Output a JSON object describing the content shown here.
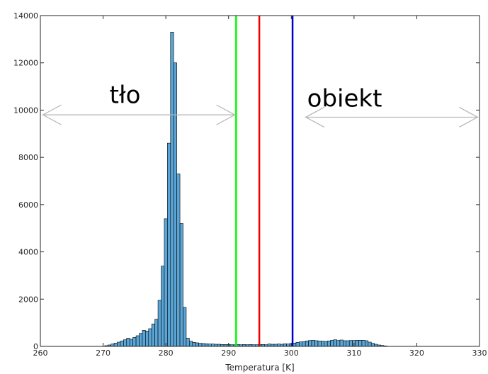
{
  "chart_data": {
    "type": "bar",
    "xlabel": "Temperatura [K]",
    "ylabel": "",
    "title": "",
    "xlim": [
      260,
      330
    ],
    "ylim": [
      0,
      14000
    ],
    "grid": false,
    "xticks": [
      "260",
      "270",
      "280",
      "290",
      "300",
      "310",
      "320",
      "330"
    ],
    "yticks": [
      "0",
      "2000",
      "4000",
      "6000",
      "8000",
      "10000",
      "12000",
      "14000"
    ],
    "bar_color": "#5aa5d6",
    "bar_edge_color": "#000000",
    "bin_width": 0.5,
    "bins": [
      [
        270.5,
        30
      ],
      [
        271.0,
        60
      ],
      [
        271.5,
        100
      ],
      [
        272.0,
        140
      ],
      [
        272.5,
        180
      ],
      [
        273.0,
        230
      ],
      [
        273.5,
        280
      ],
      [
        274.0,
        350
      ],
      [
        274.5,
        300
      ],
      [
        275.0,
        380
      ],
      [
        275.5,
        450
      ],
      [
        276.0,
        550
      ],
      [
        276.5,
        680
      ],
      [
        277.0,
        650
      ],
      [
        277.5,
        750
      ],
      [
        278.0,
        950
      ],
      [
        278.5,
        1150
      ],
      [
        279.0,
        1950
      ],
      [
        279.5,
        3400
      ],
      [
        280.0,
        5400
      ],
      [
        280.5,
        8600
      ],
      [
        281.0,
        13300
      ],
      [
        281.5,
        12000
      ],
      [
        282.0,
        7300
      ],
      [
        282.5,
        5200
      ],
      [
        283.0,
        1650
      ],
      [
        283.5,
        350
      ],
      [
        284.0,
        220
      ],
      [
        284.5,
        170
      ],
      [
        285.0,
        150
      ],
      [
        285.5,
        130
      ],
      [
        286.0,
        120
      ],
      [
        286.5,
        110
      ],
      [
        287.0,
        100
      ],
      [
        287.5,
        100
      ],
      [
        288.0,
        90
      ],
      [
        288.5,
        90
      ],
      [
        289.0,
        80
      ],
      [
        289.5,
        80
      ],
      [
        290.0,
        80
      ],
      [
        290.5,
        70
      ],
      [
        291.0,
        70
      ],
      [
        291.5,
        80
      ],
      [
        292.0,
        70
      ],
      [
        292.5,
        80
      ],
      [
        293.0,
        70
      ],
      [
        293.5,
        80
      ],
      [
        294.0,
        70
      ],
      [
        294.5,
        70
      ],
      [
        295.0,
        80
      ],
      [
        295.5,
        80
      ],
      [
        296.0,
        70
      ],
      [
        296.5,
        100
      ],
      [
        297.0,
        90
      ],
      [
        297.5,
        90
      ],
      [
        298.0,
        100
      ],
      [
        298.5,
        90
      ],
      [
        299.0,
        110
      ],
      [
        299.5,
        100
      ],
      [
        300.0,
        120
      ],
      [
        300.5,
        140
      ],
      [
        301.0,
        170
      ],
      [
        301.5,
        190
      ],
      [
        302.0,
        200
      ],
      [
        302.5,
        230
      ],
      [
        303.0,
        250
      ],
      [
        303.5,
        260
      ],
      [
        304.0,
        240
      ],
      [
        304.5,
        230
      ],
      [
        305.0,
        220
      ],
      [
        305.5,
        210
      ],
      [
        306.0,
        230
      ],
      [
        306.5,
        260
      ],
      [
        307.0,
        280
      ],
      [
        307.5,
        250
      ],
      [
        308.0,
        270
      ],
      [
        308.5,
        240
      ],
      [
        309.0,
        240
      ],
      [
        309.5,
        250
      ],
      [
        310.0,
        250
      ],
      [
        310.5,
        260
      ],
      [
        311.0,
        260
      ],
      [
        311.5,
        260
      ],
      [
        312.0,
        240
      ],
      [
        312.5,
        180
      ],
      [
        313.0,
        130
      ],
      [
        313.5,
        90
      ],
      [
        314.0,
        60
      ],
      [
        314.5,
        40
      ],
      [
        315.0,
        20
      ]
    ],
    "vertical_lines": [
      {
        "x": 291.2,
        "color": "#00ff00"
      },
      {
        "x": 294.9,
        "color": "#ee0000"
      },
      {
        "x": 300.2,
        "color": "#0000cc"
      }
    ],
    "annotations": [
      {
        "text": "tło",
        "x": 273.5,
        "y": 10300,
        "arrow_from": 260.4,
        "arrow_to": 291.0,
        "arrow_y": 9800
      },
      {
        "text": "obiekt",
        "x": 308.5,
        "y": 10150,
        "arrow_from": 302.3,
        "arrow_to": 329.7,
        "arrow_y": 9700
      }
    ],
    "arrow_color": "#b4b4b4"
  }
}
